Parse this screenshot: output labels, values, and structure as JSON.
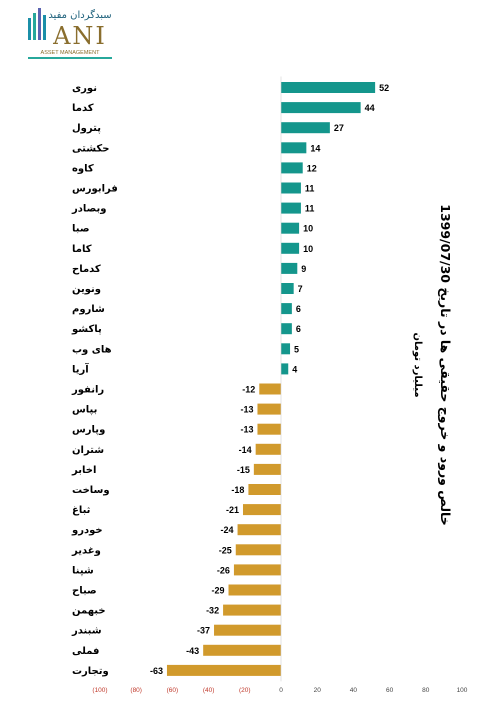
{
  "logo": {
    "top_text": "سبدگردان مفید",
    "mark": "ANI",
    "sub_text": "ASSET MANAGEMENT",
    "colors": [
      "#1b8fa8",
      "#27a89b",
      "#5a63b0",
      "#8a6e2e"
    ]
  },
  "chart_data": {
    "type": "bar",
    "orientation": "horizontal",
    "title": "خالص ورود و خروج حقیقی ها در تاریخ 1399/07/30",
    "subtitle": "میلیارد تومان",
    "categories": [
      "نوری",
      "کدما",
      "پترول",
      "حکشتی",
      "کاوه",
      "فرابورس",
      "وبصادر",
      "صبا",
      "کاما",
      "کدماح",
      "ونوین",
      "شاروم",
      "پاکشو",
      "های وب",
      "آریا",
      "رانفور",
      "بپاس",
      "وپارس",
      "شتران",
      "اخابر",
      "وساخت",
      "ثباغ",
      "خودرو",
      "وغدیر",
      "شپنا",
      "صباح",
      "خبهمن",
      "شبندر",
      "فملی",
      "وتجارت"
    ],
    "values": [
      52,
      44,
      27,
      14,
      12,
      11,
      11,
      10,
      10,
      9,
      7,
      6,
      6,
      5,
      4,
      -12,
      -13,
      -13,
      -14,
      -15,
      -18,
      -21,
      -24,
      -25,
      -26,
      -29,
      -32,
      -37,
      -43,
      -63
    ],
    "xlim": [
      -100,
      100
    ],
    "x_ticks": [
      -100,
      -80,
      -60,
      -40,
      -20,
      0,
      20,
      40,
      60,
      80,
      100
    ],
    "x_tick_labels": [
      "(100)",
      "(80)",
      "(60)",
      "(40)",
      "(20)",
      "0",
      "20",
      "40",
      "60",
      "80",
      "100"
    ],
    "positive_color": "#14968c",
    "negative_color": "#d19a2c",
    "negative_tick_color": "#c0392b",
    "grid": false,
    "legend": "none"
  }
}
